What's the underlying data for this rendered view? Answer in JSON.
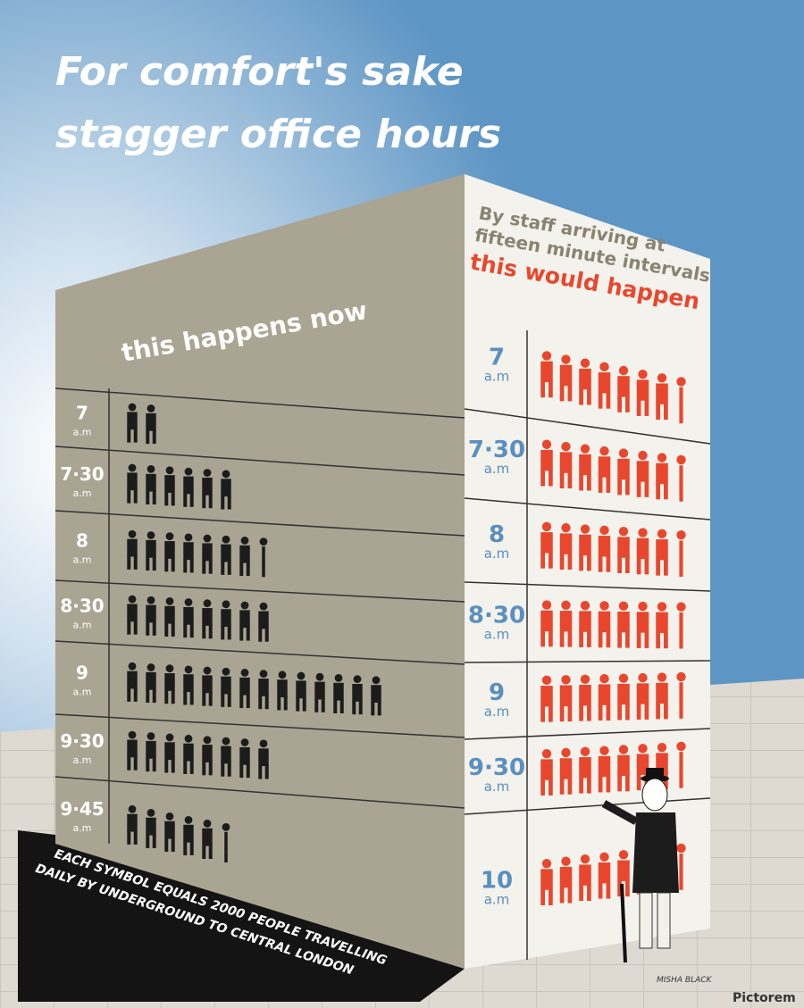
{
  "title": [
    "For comfort's sake",
    "stagger office hours"
  ],
  "footnote": [
    "EACH SYMBOL EQUALS 2000 PEOPLE TRAVELLING",
    "DAILY BY UNDERGROUND TO CENTRAL LONDON"
  ],
  "credit": "MISHA BLACK",
  "watermark": "Pictorem",
  "chart_data": [
    {
      "type": "pictogram",
      "title": "this happens now",
      "categories": [
        "7",
        "7·30",
        "8",
        "8·30",
        "9",
        "9·30",
        "9·45"
      ],
      "category_unit": "a.m",
      "values": [
        2,
        6,
        7.5,
        8,
        14,
        8,
        5.5
      ],
      "color": "#1c1c1c"
    },
    {
      "type": "pictogram",
      "subtitle": [
        "By staff arriving at",
        "fifteen minute intervals"
      ],
      "title": "this would happen",
      "categories": [
        "7",
        "7·30",
        "8",
        "8·30",
        "9",
        "9·30",
        "10"
      ],
      "category_unit": "a.m",
      "values": [
        7.5,
        7.5,
        7.5,
        7.5,
        7.5,
        7.5,
        7.5
      ],
      "color": "#e8472e"
    }
  ]
}
